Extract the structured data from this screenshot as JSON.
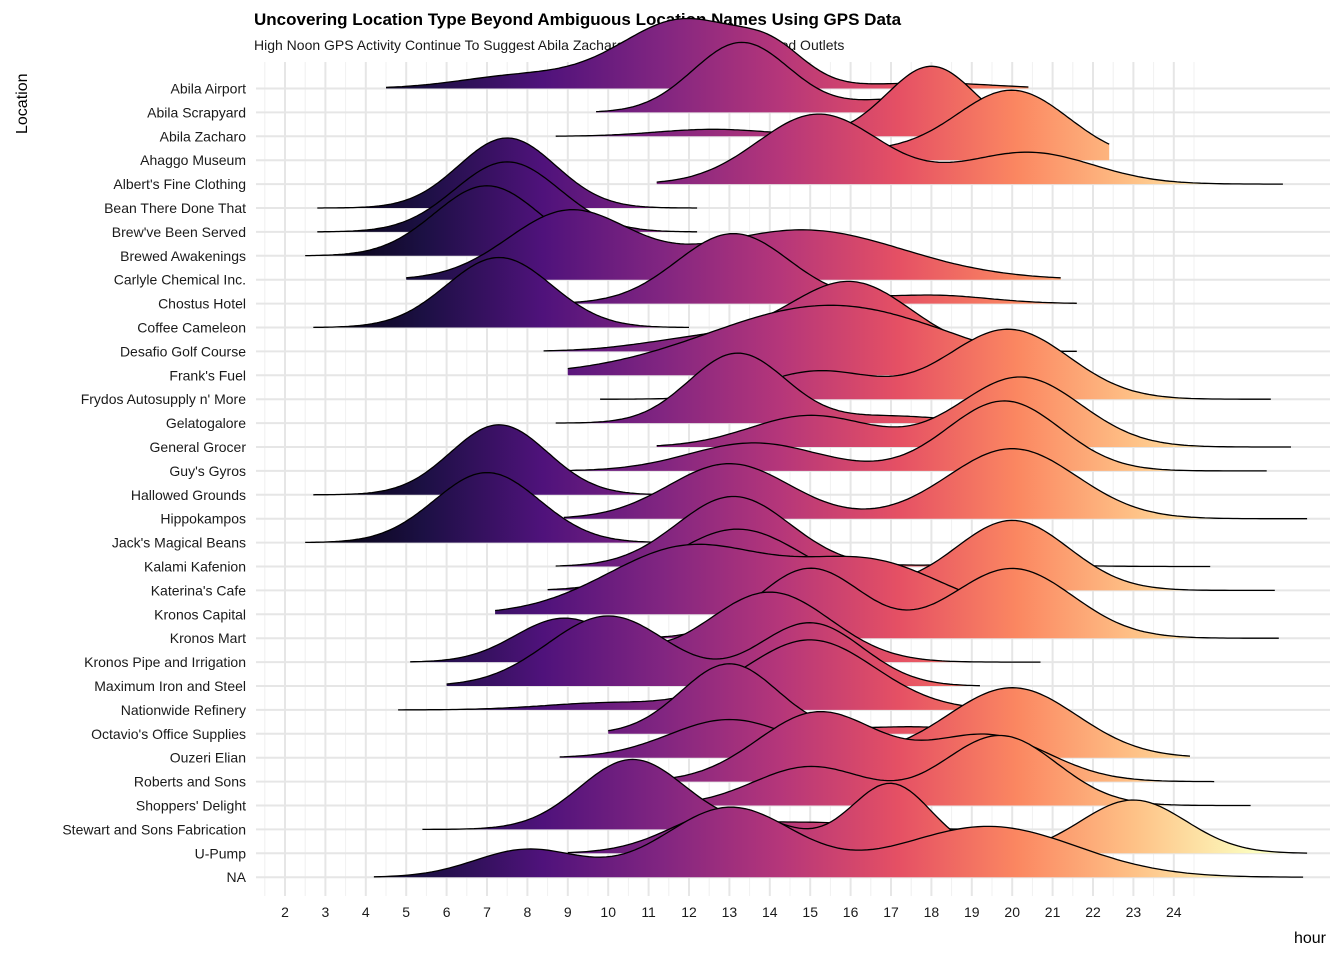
{
  "chart_data": {
    "type": "ridgeline",
    "title": "Uncovering Location Type Beyond Ambiguous Location Names Using GPS Data",
    "subtitle": "High Noon GPS Activity Continue To Suggest Abila Zacharo and Hippokampos As Food Outlets",
    "xlabel": "hour",
    "ylabel": "Location",
    "x_ticks": [
      "2",
      "3",
      "4",
      "5",
      "6",
      "7",
      "8",
      "9",
      "10",
      "11",
      "12",
      "13",
      "14",
      "15",
      "16",
      "17",
      "18",
      "19",
      "20",
      "21",
      "22",
      "23",
      "24"
    ],
    "xlim": [
      1.6,
      27.0
    ],
    "grid": true,
    "colormap": [
      "#000004",
      "#1c1044",
      "#4f127b",
      "#812581",
      "#b5367a",
      "#e55064",
      "#fb8761",
      "#fec287",
      "#fcfdbf"
    ],
    "series": [
      {
        "name": "Abila Airport",
        "min": 4.5,
        "max": 20.4,
        "peaks": [
          [
            11.9,
            1.6,
            1.0
          ],
          [
            14.1,
            0.8,
            0.35
          ],
          [
            7.8,
            1.5,
            0.18
          ],
          [
            18,
            1.5,
            0.08
          ]
        ]
      },
      {
        "name": "Abila Scrapyard",
        "min": 9.7,
        "max": 21.0,
        "peaks": [
          [
            13.3,
            1.2,
            1.0
          ],
          [
            17.5,
            1.4,
            0.2
          ]
        ]
      },
      {
        "name": "Abila Zacharo",
        "min": 8.7,
        "max": 21.8,
        "peaks": [
          [
            18.0,
            1.1,
            1.0
          ],
          [
            12.6,
            1.4,
            0.1
          ]
        ]
      },
      {
        "name": "Ahaggo Museum",
        "min": 13.6,
        "max": 22.4,
        "peaks": [
          [
            20.0,
            1.4,
            1.0
          ],
          [
            16.5,
            1.4,
            0.12
          ]
        ]
      },
      {
        "name": "Albert's Fine Clothing",
        "min": 11.2,
        "max": 26.7,
        "peaks": [
          [
            15.2,
            1.5,
            0.55
          ],
          [
            20.4,
            1.6,
            0.25
          ]
        ]
      },
      {
        "name": "Bean There Done That",
        "min": 2.8,
        "max": 12.2,
        "peaks": [
          [
            7.5,
            1.2,
            1.0
          ]
        ]
      },
      {
        "name": "Brew've Been Served",
        "min": 2.8,
        "max": 12.2,
        "peaks": [
          [
            7.5,
            1.3,
            1.0
          ]
        ]
      },
      {
        "name": "Brewed Awakenings",
        "min": 2.5,
        "max": 11.6,
        "peaks": [
          [
            7.0,
            1.3,
            1.0
          ]
        ]
      },
      {
        "name": "Carlyle Chemical Inc.",
        "min": 5.0,
        "max": 21.2,
        "peaks": [
          [
            9.0,
            1.5,
            0.4
          ],
          [
            14.8,
            2.5,
            0.3
          ]
        ]
      },
      {
        "name": "Chostus Hotel",
        "min": 9.0,
        "max": 21.6,
        "peaks": [
          [
            13.1,
            1.4,
            1.0
          ],
          [
            18.0,
            1.4,
            0.12
          ]
        ]
      },
      {
        "name": "Coffee Cameleon",
        "min": 2.7,
        "max": 12.0,
        "peaks": [
          [
            7.3,
            1.3,
            1.0
          ]
        ]
      },
      {
        "name": "Desafio Golf Course",
        "min": 8.4,
        "max": 21.6,
        "peaks": [
          [
            16.0,
            1.5,
            1.0
          ],
          [
            12.5,
            1.6,
            0.2
          ]
        ]
      },
      {
        "name": "Frank's Fuel",
        "min": 9.0,
        "max": 21.4,
        "peaks": [
          [
            15.5,
            3.0,
            0.15
          ]
        ]
      },
      {
        "name": "Frydos Autosupply n' More",
        "min": 9.8,
        "max": 26.4,
        "peaks": [
          [
            19.9,
            1.5,
            1.0
          ],
          [
            15.2,
            1.4,
            0.4
          ]
        ]
      },
      {
        "name": "Gelatogalore",
        "min": 8.7,
        "max": 20.5,
        "peaks": [
          [
            13.2,
            1.2,
            1.0
          ],
          [
            17.0,
            1.4,
            0.1
          ]
        ]
      },
      {
        "name": "General Grocer",
        "min": 11.2,
        "max": 26.9,
        "peaks": [
          [
            20.2,
            1.5,
            1.0
          ],
          [
            15.0,
            1.5,
            0.45
          ]
        ]
      },
      {
        "name": "Guy's Gyros",
        "min": 9.0,
        "max": 26.3,
        "peaks": [
          [
            19.8,
            1.4,
            1.0
          ],
          [
            13.6,
            1.6,
            0.4
          ]
        ]
      },
      {
        "name": "Hallowed Grounds",
        "min": 2.7,
        "max": 12.0,
        "peaks": [
          [
            7.3,
            1.2,
            1.0
          ]
        ]
      },
      {
        "name": "Hippokampos",
        "min": 8.9,
        "max": 27.3,
        "peaks": [
          [
            13.0,
            1.5,
            0.55
          ],
          [
            20.0,
            1.6,
            0.7
          ]
        ]
      },
      {
        "name": "Jack's Magical Beans",
        "min": 2.5,
        "max": 11.4,
        "peaks": [
          [
            7.0,
            1.3,
            1.0
          ]
        ]
      },
      {
        "name": "Kalami Kafenion",
        "min": 8.7,
        "max": 24.9,
        "peaks": [
          [
            13.1,
            1.4,
            1.0
          ],
          [
            19.5,
            1.6,
            0.03
          ]
        ]
      },
      {
        "name": "Katerina's Cafe",
        "min": 8.5,
        "max": 26.5,
        "peaks": [
          [
            13.2,
            1.6,
            0.7
          ],
          [
            20.0,
            1.4,
            0.8
          ]
        ]
      },
      {
        "name": "Kronos Capital",
        "min": 7.2,
        "max": 21.8,
        "peaks": [
          [
            12.0,
            2.0,
            0.6
          ],
          [
            16.5,
            1.8,
            0.45
          ]
        ]
      },
      {
        "name": "Kronos Mart",
        "min": 10.9,
        "max": 26.6,
        "peaks": [
          [
            15.0,
            1.3,
            0.6
          ],
          [
            20.0,
            1.5,
            0.6
          ]
        ]
      },
      {
        "name": "Kronos Pipe and Irrigation",
        "min": 5.1,
        "max": 20.7,
        "peaks": [
          [
            8.9,
            1.2,
            0.5
          ],
          [
            14.0,
            1.5,
            0.8
          ]
        ]
      },
      {
        "name": "Maximum Iron and Steel",
        "min": 6.0,
        "max": 19.2,
        "peaks": [
          [
            10.0,
            1.5,
            1.0
          ],
          [
            15.0,
            1.3,
            0.9
          ]
        ]
      },
      {
        "name": "Nationwide Refinery",
        "min": 4.8,
        "max": 20.1,
        "peaks": [
          [
            15.0,
            1.6,
            1.0
          ],
          [
            10.0,
            1.6,
            0.1
          ]
        ]
      },
      {
        "name": "Octavio's Office Supplies",
        "min": 10.0,
        "max": 20.0,
        "peaks": [
          [
            13.0,
            1.2,
            1.0
          ],
          [
            17.5,
            1.4,
            0.1
          ]
        ]
      },
      {
        "name": "Ouzeri Elian",
        "min": 8.8,
        "max": 24.4,
        "peaks": [
          [
            13.0,
            1.5,
            0.3
          ],
          [
            20.0,
            1.6,
            0.55
          ]
        ]
      },
      {
        "name": "Roberts and Sons",
        "min": 11.2,
        "max": 25.0,
        "peaks": [
          [
            15.2,
            1.5,
            0.6
          ],
          [
            19.4,
            1.5,
            0.4
          ]
        ]
      },
      {
        "name": "Shoppers' Delight",
        "min": 12.2,
        "max": 25.9,
        "peaks": [
          [
            15.0,
            1.4,
            0.5
          ],
          [
            19.7,
            1.4,
            0.9
          ]
        ]
      },
      {
        "name": "Stewart and Sons Fabrication",
        "min": 5.4,
        "max": 20.0,
        "peaks": [
          [
            10.6,
            1.3,
            1.0
          ],
          [
            15.0,
            1.5,
            0.1
          ]
        ]
      },
      {
        "name": "U-Pump",
        "min": 9.0,
        "max": 27.3,
        "peaks": [
          [
            13.0,
            1.4,
            0.4
          ],
          [
            17.0,
            1.0,
            0.65
          ],
          [
            23.0,
            1.3,
            0.5
          ]
        ]
      },
      {
        "name": "NA",
        "min": 4.2,
        "max": 27.2,
        "peaks": [
          [
            8.0,
            1.3,
            0.12
          ],
          [
            13.0,
            1.6,
            0.3
          ],
          [
            19.4,
            2.2,
            0.22
          ]
        ]
      }
    ]
  }
}
